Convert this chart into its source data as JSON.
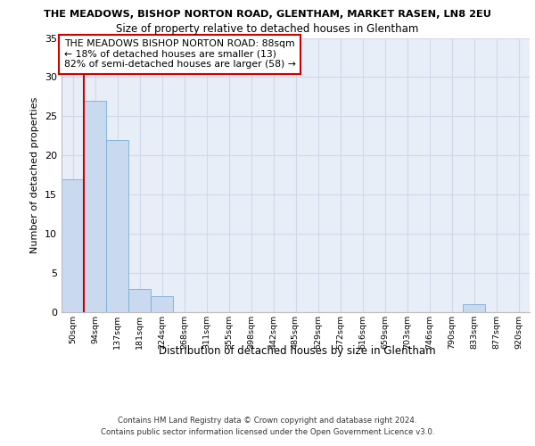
{
  "title": "THE MEADOWS, BISHOP NORTON ROAD, GLENTHAM, MARKET RASEN, LN8 2EU",
  "subtitle": "Size of property relative to detached houses in Glentham",
  "xlabel": "Distribution of detached houses by size in Glentham",
  "ylabel": "Number of detached properties",
  "bins": [
    "50sqm",
    "94sqm",
    "137sqm",
    "181sqm",
    "224sqm",
    "268sqm",
    "311sqm",
    "355sqm",
    "398sqm",
    "442sqm",
    "485sqm",
    "529sqm",
    "572sqm",
    "616sqm",
    "659sqm",
    "703sqm",
    "746sqm",
    "790sqm",
    "833sqm",
    "877sqm",
    "920sqm"
  ],
  "counts": [
    17,
    27,
    22,
    3,
    2,
    0,
    0,
    0,
    0,
    0,
    0,
    0,
    0,
    0,
    0,
    0,
    0,
    0,
    1,
    0,
    0
  ],
  "bar_color": "#c8d9f0",
  "bar_edge_color": "#7aafd4",
  "annotation_box_text": "THE MEADOWS BISHOP NORTON ROAD: 88sqm\n← 18% of detached houses are smaller (13)\n82% of semi-detached houses are larger (58) →",
  "annotation_box_color": "#ffffff",
  "annotation_box_edge_color": "#cc0000",
  "vline_color": "#cc0000",
  "ylim": [
    0,
    35
  ],
  "yticks": [
    0,
    5,
    10,
    15,
    20,
    25,
    30,
    35
  ],
  "grid_color": "#d0d8e8",
  "background_color": "#e8eef8",
  "footer_line1": "Contains HM Land Registry data © Crown copyright and database right 2024.",
  "footer_line2": "Contains public sector information licensed under the Open Government Licence v3.0."
}
